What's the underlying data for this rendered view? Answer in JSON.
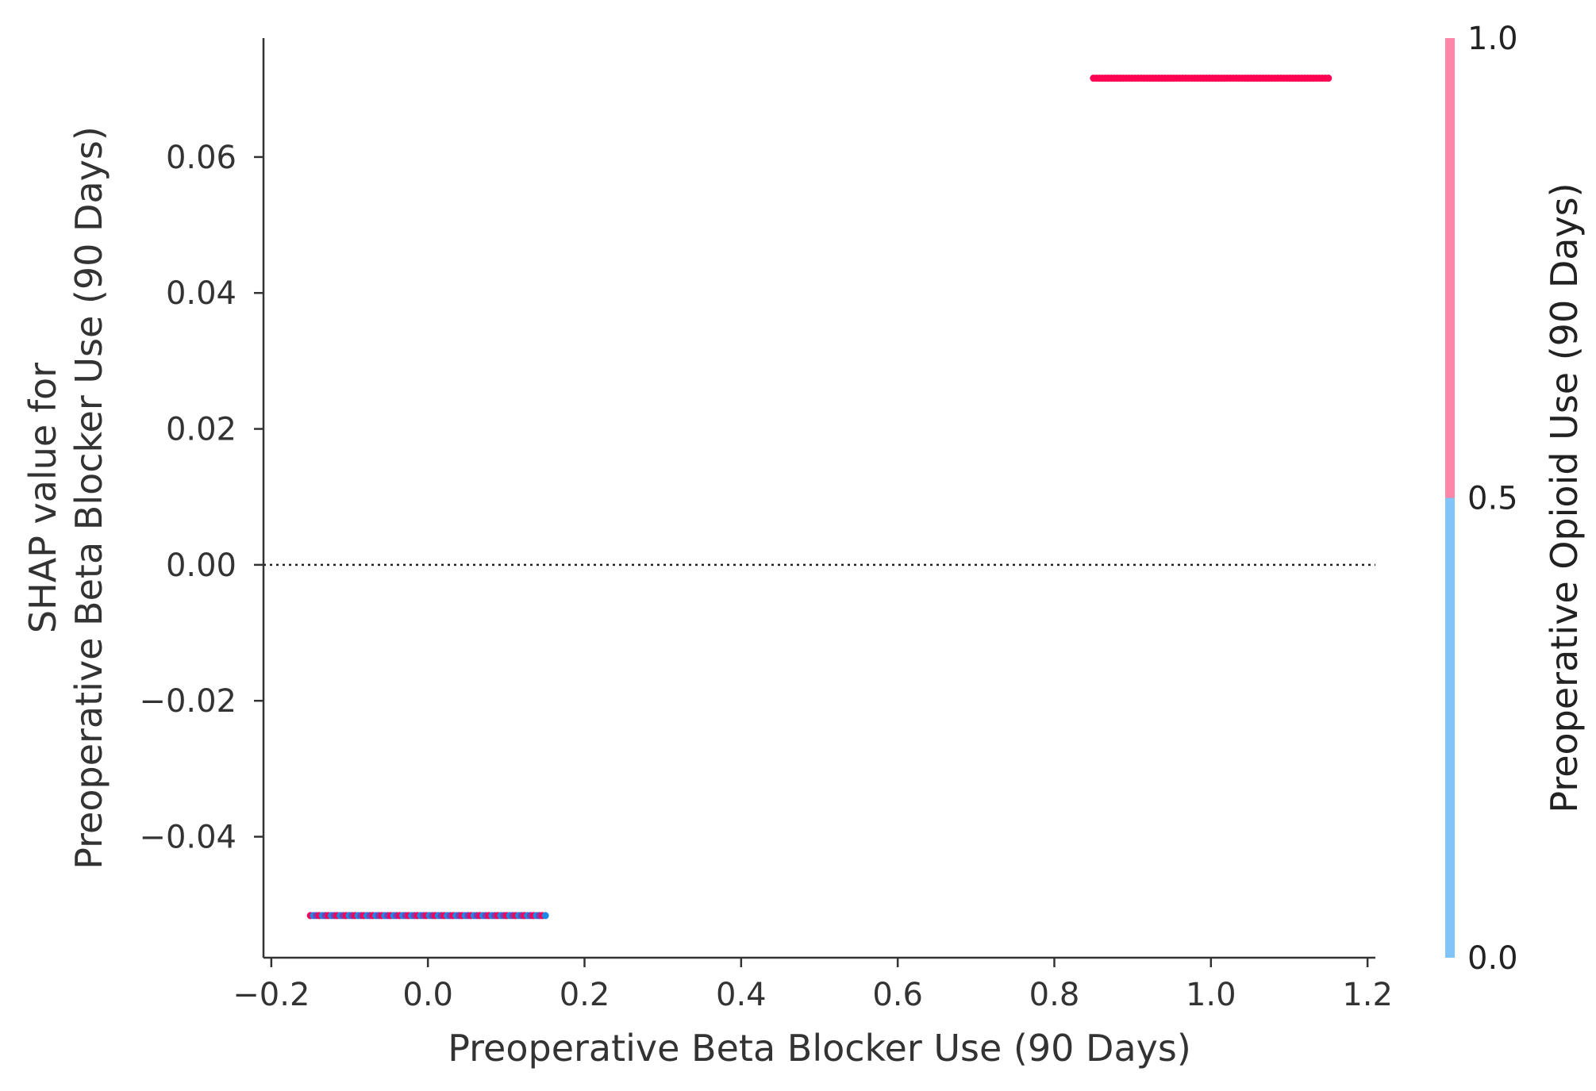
{
  "chart_data": {
    "type": "scatter",
    "xlabel": "Preoperative Beta Blocker Use (90 Days)",
    "ylabel_lines": [
      "SHAP value for",
      "Preoperative Beta Blocker Use (90 Days)"
    ],
    "xlim": [
      -0.21,
      1.21
    ],
    "ylim": [
      -0.0578,
      0.0775
    ],
    "x_ticks": [
      -0.2,
      0.0,
      0.2,
      0.4,
      0.6,
      0.8,
      1.0,
      1.2
    ],
    "x_tick_labels": [
      "−0.2",
      "0.0",
      "0.2",
      "0.4",
      "0.6",
      "0.8",
      "1.0",
      "1.2"
    ],
    "y_ticks": [
      -0.04,
      -0.02,
      0.0,
      0.02,
      0.04,
      0.06
    ],
    "y_tick_labels": [
      "−0.04",
      "−0.02",
      "0.00",
      "0.02",
      "0.04",
      "0.06"
    ],
    "reference_line_y": 0.0,
    "grid": false,
    "groups": [
      {
        "x_range": [
          -0.15,
          0.15
        ],
        "y": -0.0516,
        "color_values": "mixed 0 and 1"
      },
      {
        "x_range": [
          0.85,
          1.15
        ],
        "y": 0.0716,
        "color_values": "1"
      }
    ],
    "colorbar": {
      "label": "Preoperative Opioid Use (90 Days)",
      "ticks": [
        0.0,
        0.5,
        1.0
      ],
      "tick_labels": [
        "0.0",
        "0.5",
        "1.0"
      ],
      "low_color": "#80c4f9",
      "high_color": "#ff86a8"
    }
  },
  "colors": {
    "low_point": "#1e88e5",
    "high_point": "#ff0052",
    "mixed_point": "#7a3fb0",
    "axis": "#333333"
  }
}
